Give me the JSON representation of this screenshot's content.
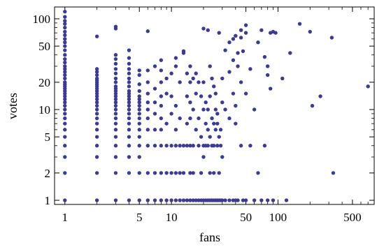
{
  "chart_data": {
    "type": "scatter",
    "title": "",
    "xlabel": "fans",
    "ylabel": "votes",
    "x_scale": "log",
    "y_scale": "log",
    "xlim": [
      0.8,
      800
    ],
    "ylim": [
      0.9,
      135
    ],
    "x_ticks": [
      1,
      5,
      10,
      50,
      100,
      500
    ],
    "x_tick_labels": [
      "1",
      "5",
      "10",
      "50",
      "100",
      "500"
    ],
    "y_ticks": [
      1,
      2,
      5,
      10,
      20,
      50,
      100
    ],
    "y_tick_labels": [
      "1",
      "2",
      "5",
      "10",
      "20",
      "50",
      "100"
    ],
    "grid": false,
    "legend": "none",
    "marker_color": "#3b3b96",
    "points": [
      [
        1,
        1
      ],
      [
        1,
        2
      ],
      [
        1,
        3
      ],
      [
        1,
        4
      ],
      [
        1,
        5
      ],
      [
        1,
        6
      ],
      [
        1,
        7
      ],
      [
        1,
        8
      ],
      [
        1,
        9
      ],
      [
        1,
        10
      ],
      [
        1,
        11
      ],
      [
        1,
        12
      ],
      [
        1,
        13
      ],
      [
        1,
        14
      ],
      [
        1,
        15
      ],
      [
        1,
        16
      ],
      [
        1,
        17
      ],
      [
        1,
        18
      ],
      [
        1,
        19
      ],
      [
        1,
        20
      ],
      [
        1,
        22
      ],
      [
        1,
        24
      ],
      [
        1,
        26
      ],
      [
        1,
        28
      ],
      [
        1,
        30
      ],
      [
        1,
        33
      ],
      [
        1,
        36
      ],
      [
        1,
        40
      ],
      [
        1,
        45
      ],
      [
        1,
        50
      ],
      [
        1,
        55
      ],
      [
        1,
        60
      ],
      [
        1,
        66
      ],
      [
        1,
        72
      ],
      [
        1,
        80
      ],
      [
        1,
        88
      ],
      [
        1,
        95
      ],
      [
        1,
        105
      ],
      [
        1,
        120
      ],
      [
        2,
        1
      ],
      [
        2,
        2
      ],
      [
        2,
        3
      ],
      [
        2,
        4
      ],
      [
        2,
        5
      ],
      [
        2,
        6
      ],
      [
        2,
        7
      ],
      [
        2,
        8
      ],
      [
        2,
        9
      ],
      [
        2,
        10
      ],
      [
        2,
        11
      ],
      [
        2,
        12
      ],
      [
        2,
        13
      ],
      [
        2,
        14
      ],
      [
        2,
        15
      ],
      [
        2,
        16
      ],
      [
        2,
        17
      ],
      [
        2,
        18
      ],
      [
        2,
        19
      ],
      [
        2,
        20
      ],
      [
        2,
        21
      ],
      [
        2,
        22
      ],
      [
        2,
        24
      ],
      [
        2,
        26
      ],
      [
        2,
        28
      ],
      [
        2,
        64
      ],
      [
        3,
        1
      ],
      [
        3,
        2
      ],
      [
        3,
        3
      ],
      [
        3,
        4
      ],
      [
        3,
        5
      ],
      [
        3,
        6
      ],
      [
        3,
        7
      ],
      [
        3,
        8
      ],
      [
        3,
        9
      ],
      [
        3,
        10
      ],
      [
        3,
        11
      ],
      [
        3,
        12
      ],
      [
        3,
        13
      ],
      [
        3,
        14
      ],
      [
        3,
        15
      ],
      [
        3,
        16
      ],
      [
        3,
        17
      ],
      [
        3,
        18
      ],
      [
        3,
        20
      ],
      [
        3,
        22
      ],
      [
        3,
        25
      ],
      [
        3,
        28
      ],
      [
        3,
        32
      ],
      [
        3,
        36
      ],
      [
        3,
        40
      ],
      [
        3,
        78
      ],
      [
        3,
        82
      ],
      [
        4,
        1
      ],
      [
        4,
        2
      ],
      [
        4,
        3
      ],
      [
        4,
        4
      ],
      [
        4,
        5
      ],
      [
        4,
        6
      ],
      [
        4,
        7
      ],
      [
        4,
        8
      ],
      [
        4,
        9
      ],
      [
        4,
        10
      ],
      [
        4,
        11
      ],
      [
        4,
        12
      ],
      [
        4,
        13
      ],
      [
        4,
        14
      ],
      [
        4,
        15
      ],
      [
        4,
        16
      ],
      [
        4,
        18
      ],
      [
        4,
        20
      ],
      [
        4,
        22
      ],
      [
        4,
        25
      ],
      [
        4,
        28
      ],
      [
        4,
        32
      ],
      [
        4,
        37
      ],
      [
        4,
        45
      ],
      [
        5,
        1
      ],
      [
        5,
        2
      ],
      [
        5,
        3
      ],
      [
        5,
        4
      ],
      [
        5,
        5
      ],
      [
        5,
        6
      ],
      [
        5,
        7
      ],
      [
        5,
        8
      ],
      [
        5,
        9
      ],
      [
        5,
        10
      ],
      [
        5,
        11
      ],
      [
        5,
        12
      ],
      [
        5,
        13
      ],
      [
        5,
        14
      ],
      [
        5,
        16
      ],
      [
        5,
        19
      ],
      [
        5,
        24
      ],
      [
        5,
        27
      ],
      [
        6,
        1
      ],
      [
        6,
        2
      ],
      [
        6,
        4
      ],
      [
        6,
        6
      ],
      [
        6,
        8
      ],
      [
        6,
        10
      ],
      [
        6,
        12
      ],
      [
        6,
        15
      ],
      [
        6,
        20
      ],
      [
        6,
        27
      ],
      [
        6,
        73
      ],
      [
        7,
        1
      ],
      [
        7,
        2
      ],
      [
        7,
        4
      ],
      [
        7,
        6
      ],
      [
        7,
        9
      ],
      [
        7,
        12
      ],
      [
        7,
        17
      ],
      [
        7,
        30
      ],
      [
        8,
        1
      ],
      [
        8,
        2
      ],
      [
        8,
        4
      ],
      [
        8,
        6
      ],
      [
        8,
        8
      ],
      [
        8,
        11
      ],
      [
        8,
        14
      ],
      [
        8,
        20
      ],
      [
        8,
        27
      ],
      [
        8,
        35
      ],
      [
        9,
        1
      ],
      [
        9,
        2
      ],
      [
        9,
        4
      ],
      [
        9,
        7
      ],
      [
        9,
        15
      ],
      [
        9,
        22
      ],
      [
        10,
        1
      ],
      [
        10,
        2
      ],
      [
        10,
        4
      ],
      [
        10,
        9
      ],
      [
        10,
        14
      ],
      [
        10,
        25
      ],
      [
        11,
        1
      ],
      [
        11,
        2
      ],
      [
        11,
        4
      ],
      [
        11,
        6
      ],
      [
        11,
        11
      ],
      [
        11,
        30
      ],
      [
        11,
        37
      ],
      [
        12,
        1
      ],
      [
        12,
        2
      ],
      [
        12,
        4
      ],
      [
        12,
        8
      ],
      [
        12,
        20
      ],
      [
        13,
        1
      ],
      [
        13,
        2
      ],
      [
        13,
        4
      ],
      [
        13,
        42
      ],
      [
        13,
        44
      ],
      [
        14,
        1
      ],
      [
        14,
        4
      ],
      [
        14,
        7
      ],
      [
        14,
        14
      ],
      [
        14,
        25
      ],
      [
        15,
        1
      ],
      [
        15,
        2
      ],
      [
        15,
        4
      ],
      [
        15,
        8
      ],
      [
        15,
        12
      ],
      [
        15,
        20
      ],
      [
        15,
        30
      ],
      [
        16,
        1
      ],
      [
        16,
        2
      ],
      [
        16,
        4
      ],
      [
        16,
        10
      ],
      [
        16,
        22
      ],
      [
        17,
        1
      ],
      [
        17,
        6
      ],
      [
        17,
        15
      ],
      [
        17,
        25
      ],
      [
        18,
        1
      ],
      [
        18,
        4
      ],
      [
        18,
        8
      ],
      [
        18,
        20
      ],
      [
        19,
        1
      ],
      [
        19,
        2
      ],
      [
        19,
        5
      ],
      [
        19,
        14
      ],
      [
        20,
        1
      ],
      [
        20,
        3
      ],
      [
        20,
        4
      ],
      [
        20,
        10
      ],
      [
        20,
        20
      ],
      [
        20,
        78
      ],
      [
        21,
        1
      ],
      [
        21,
        4
      ],
      [
        21,
        7
      ],
      [
        21,
        12
      ],
      [
        22,
        1
      ],
      [
        22,
        4
      ],
      [
        22,
        6
      ],
      [
        22,
        10
      ],
      [
        22,
        75
      ],
      [
        23,
        1
      ],
      [
        23,
        2
      ],
      [
        23,
        5
      ],
      [
        23,
        14
      ],
      [
        23,
        30
      ],
      [
        24,
        1
      ],
      [
        24,
        4
      ],
      [
        24,
        8
      ],
      [
        24,
        22
      ],
      [
        25,
        1
      ],
      [
        25,
        2
      ],
      [
        25,
        4
      ],
      [
        25,
        7
      ],
      [
        25,
        18
      ],
      [
        26,
        1
      ],
      [
        26,
        6
      ],
      [
        26,
        10
      ],
      [
        26,
        15
      ],
      [
        27,
        1
      ],
      [
        27,
        4
      ],
      [
        27,
        7
      ],
      [
        27,
        9
      ],
      [
        28,
        1
      ],
      [
        28,
        2
      ],
      [
        28,
        5
      ],
      [
        28,
        70
      ],
      [
        29,
        1
      ],
      [
        29,
        4
      ],
      [
        29,
        6
      ],
      [
        30,
        1
      ],
      [
        30,
        3
      ],
      [
        30,
        12
      ],
      [
        30,
        22
      ],
      [
        32,
        1
      ],
      [
        32,
        10
      ],
      [
        32,
        45
      ],
      [
        35,
        1
      ],
      [
        35,
        8
      ],
      [
        35,
        26
      ],
      [
        35,
        55
      ],
      [
        38,
        1
      ],
      [
        38,
        15
      ],
      [
        38,
        35
      ],
      [
        38,
        60
      ],
      [
        40,
        1
      ],
      [
        40,
        7
      ],
      [
        40,
        11
      ],
      [
        40,
        65
      ],
      [
        42,
        1
      ],
      [
        42,
        30
      ],
      [
        42,
        42
      ],
      [
        45,
        4
      ],
      [
        45,
        20
      ],
      [
        45,
        62
      ],
      [
        45,
        75
      ],
      [
        47,
        1
      ],
      [
        47,
        44
      ],
      [
        50,
        1
      ],
      [
        50,
        15
      ],
      [
        50,
        70
      ],
      [
        50,
        85
      ],
      [
        55,
        4
      ],
      [
        55,
        28
      ],
      [
        60,
        1
      ],
      [
        60,
        10
      ],
      [
        65,
        2
      ],
      [
        65,
        55
      ],
      [
        70,
        1
      ],
      [
        70,
        75
      ],
      [
        75,
        4
      ],
      [
        75,
        38
      ],
      [
        80,
        1
      ],
      [
        80,
        24
      ],
      [
        80,
        30
      ],
      [
        85,
        17
      ],
      [
        85,
        70
      ],
      [
        90,
        1
      ],
      [
        90,
        72
      ],
      [
        95,
        70
      ],
      [
        110,
        22
      ],
      [
        120,
        1
      ],
      [
        130,
        42
      ],
      [
        160,
        88
      ],
      [
        200,
        72
      ],
      [
        210,
        11
      ],
      [
        250,
        14
      ],
      [
        320,
        62
      ],
      [
        330,
        2
      ],
      [
        700,
        18
      ]
    ]
  }
}
